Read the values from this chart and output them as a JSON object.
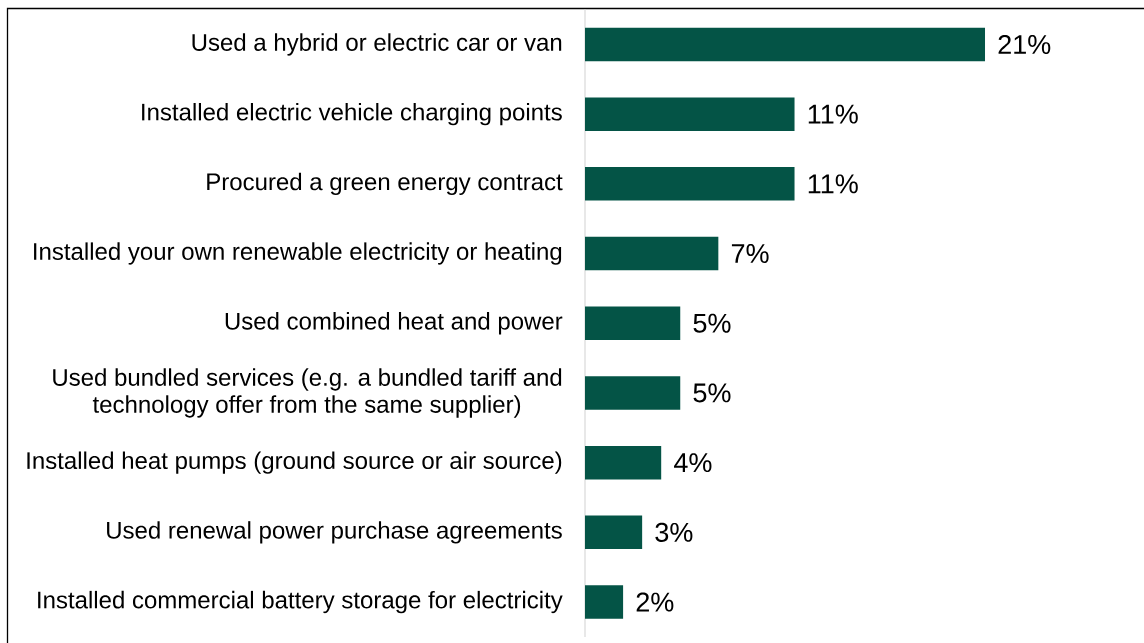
{
  "chart_data": {
    "type": "bar",
    "orientation": "horizontal",
    "categories": [
      "Used a hybrid or electric car or van",
      "Installed electric vehicle charging points",
      "Procured a green energy contract",
      "Installed your own renewable electricity or heating",
      "Used combined heat and power",
      "Used bundled services (e.g. a bundled tariff and technology offer from the same supplier)",
      "Installed heat pumps (ground source or air source)",
      "Used renewal power purchase agreements",
      "Installed commercial battery storage for electricity"
    ],
    "values": [
      21,
      11,
      11,
      7,
      5,
      5,
      4,
      3,
      2
    ],
    "color": "#045446",
    "value_labels": [
      "21%",
      "11%",
      "11%",
      "7%",
      "5%",
      "5%",
      "4%",
      "3%",
      "2%"
    ]
  }
}
